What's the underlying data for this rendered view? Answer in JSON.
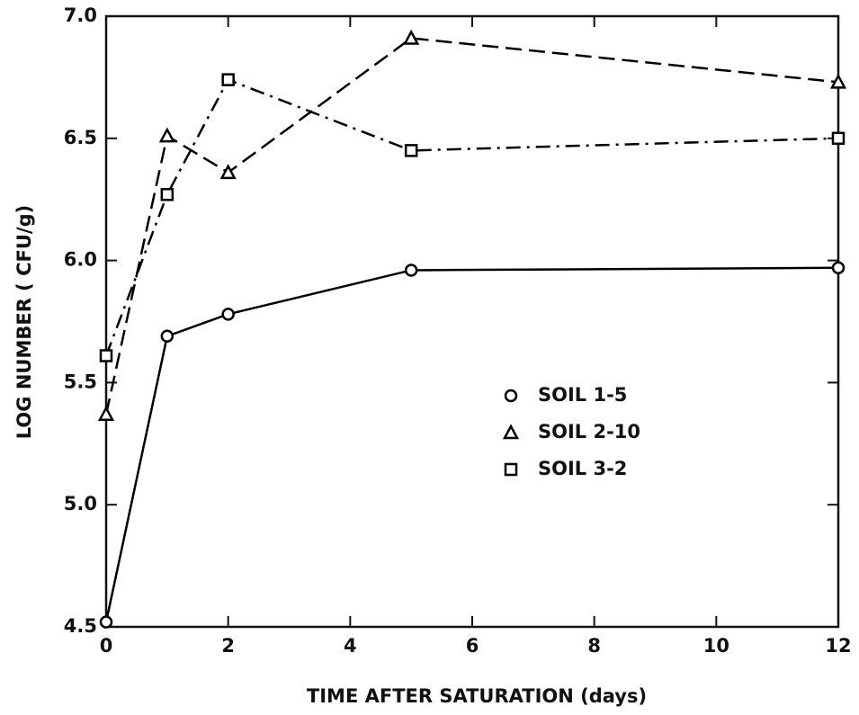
{
  "chart_data": {
    "type": "line",
    "xlabel": "TIME AFTER SATURATION (days)",
    "ylabel": "LOG NUMBER  ( CFU/g)",
    "x": [
      0,
      1,
      2,
      5,
      12
    ],
    "series": [
      {
        "name": "SOIL  1-5",
        "color": "#000000",
        "marker": "circle",
        "dash": "solid",
        "values": [
          4.52,
          5.69,
          5.78,
          5.96,
          5.97
        ]
      },
      {
        "name": "SOIL  2-10",
        "color": "#000000",
        "marker": "triangle",
        "dash": "dashed",
        "values": [
          5.37,
          6.51,
          6.36,
          6.91,
          6.73
        ]
      },
      {
        "name": "SOIL  3-2",
        "color": "#000000",
        "marker": "square",
        "dash": "dashdot",
        "values": [
          5.61,
          6.27,
          6.74,
          6.45,
          6.5
        ]
      }
    ],
    "xlim": [
      0,
      12
    ],
    "xticks": [
      0,
      2,
      4,
      6,
      8,
      10,
      12
    ],
    "ylim": [
      4.5,
      7.0
    ],
    "yticks": [
      4.5,
      {
        "value": 5,
        "label": "5.0"
      },
      5.5,
      {
        "value": 6,
        "label": "6.0"
      },
      6.5,
      {
        "value": 7,
        "label": "7.0"
      }
    ],
    "grid": false,
    "legend": "center right"
  }
}
